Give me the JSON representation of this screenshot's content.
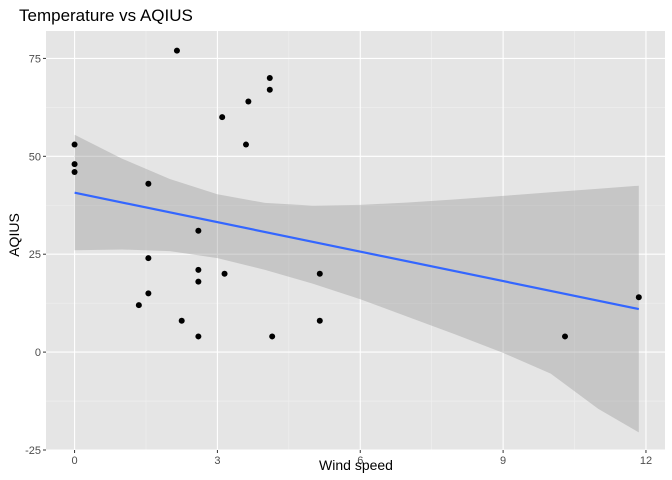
{
  "chart_data": {
    "type": "scatter",
    "title": "Temperature vs AQIUS",
    "xlabel": "Wind speed",
    "ylabel": "AQIUS",
    "xlim": [
      -0.6,
      12.4
    ],
    "ylim": [
      -25,
      82
    ],
    "x_ticks": [
      0,
      3,
      6,
      9,
      12
    ],
    "x_tick_labels": [
      "0",
      "3",
      "6",
      "9",
      "12"
    ],
    "y_ticks": [
      -25,
      0,
      25,
      50,
      75
    ],
    "y_tick_labels": [
      "-25",
      "0",
      "25",
      "50",
      "75"
    ],
    "grid": true,
    "points": [
      {
        "x": 0,
        "y": 53
      },
      {
        "x": 0,
        "y": 48
      },
      {
        "x": 0,
        "y": 46
      },
      {
        "x": 1.35,
        "y": 12
      },
      {
        "x": 1.55,
        "y": 43
      },
      {
        "x": 1.55,
        "y": 24
      },
      {
        "x": 1.55,
        "y": 15
      },
      {
        "x": 2.15,
        "y": 77
      },
      {
        "x": 2.25,
        "y": 8
      },
      {
        "x": 2.6,
        "y": 31
      },
      {
        "x": 2.6,
        "y": 21
      },
      {
        "x": 2.6,
        "y": 18
      },
      {
        "x": 2.6,
        "y": 4
      },
      {
        "x": 3.1,
        "y": 60
      },
      {
        "x": 3.15,
        "y": 20
      },
      {
        "x": 3.6,
        "y": 53
      },
      {
        "x": 3.65,
        "y": 64
      },
      {
        "x": 4.1,
        "y": 70
      },
      {
        "x": 4.1,
        "y": 67
      },
      {
        "x": 4.15,
        "y": 4
      },
      {
        "x": 5.15,
        "y": 20
      },
      {
        "x": 5.15,
        "y": 8
      },
      {
        "x": 10.3,
        "y": 4
      },
      {
        "x": 11.85,
        "y": 14
      }
    ],
    "fit_line": {
      "x": [
        0,
        11.85
      ],
      "y": [
        40.7,
        11
      ]
    },
    "confidence_band": {
      "x": [
        0,
        1,
        2,
        3,
        4,
        5,
        6,
        7,
        8,
        9,
        10,
        11,
        11.85
      ],
      "upper": [
        55.5,
        49.4,
        44.2,
        40.3,
        38.1,
        37.4,
        37.6,
        38.2,
        39,
        39.9,
        40.8,
        41.7,
        42.5
      ],
      "lower": [
        26,
        26.2,
        25.8,
        24,
        21,
        17.5,
        13.5,
        9,
        4.5,
        -0.2,
        -5.5,
        -14.5,
        -20.5
      ]
    },
    "colors": {
      "panel": "#e5e5e5",
      "grid_major": "#ffffff",
      "grid_minor": "#f0f0f0",
      "points": "#000000",
      "line": "#3366ff",
      "band": "#999999"
    }
  }
}
